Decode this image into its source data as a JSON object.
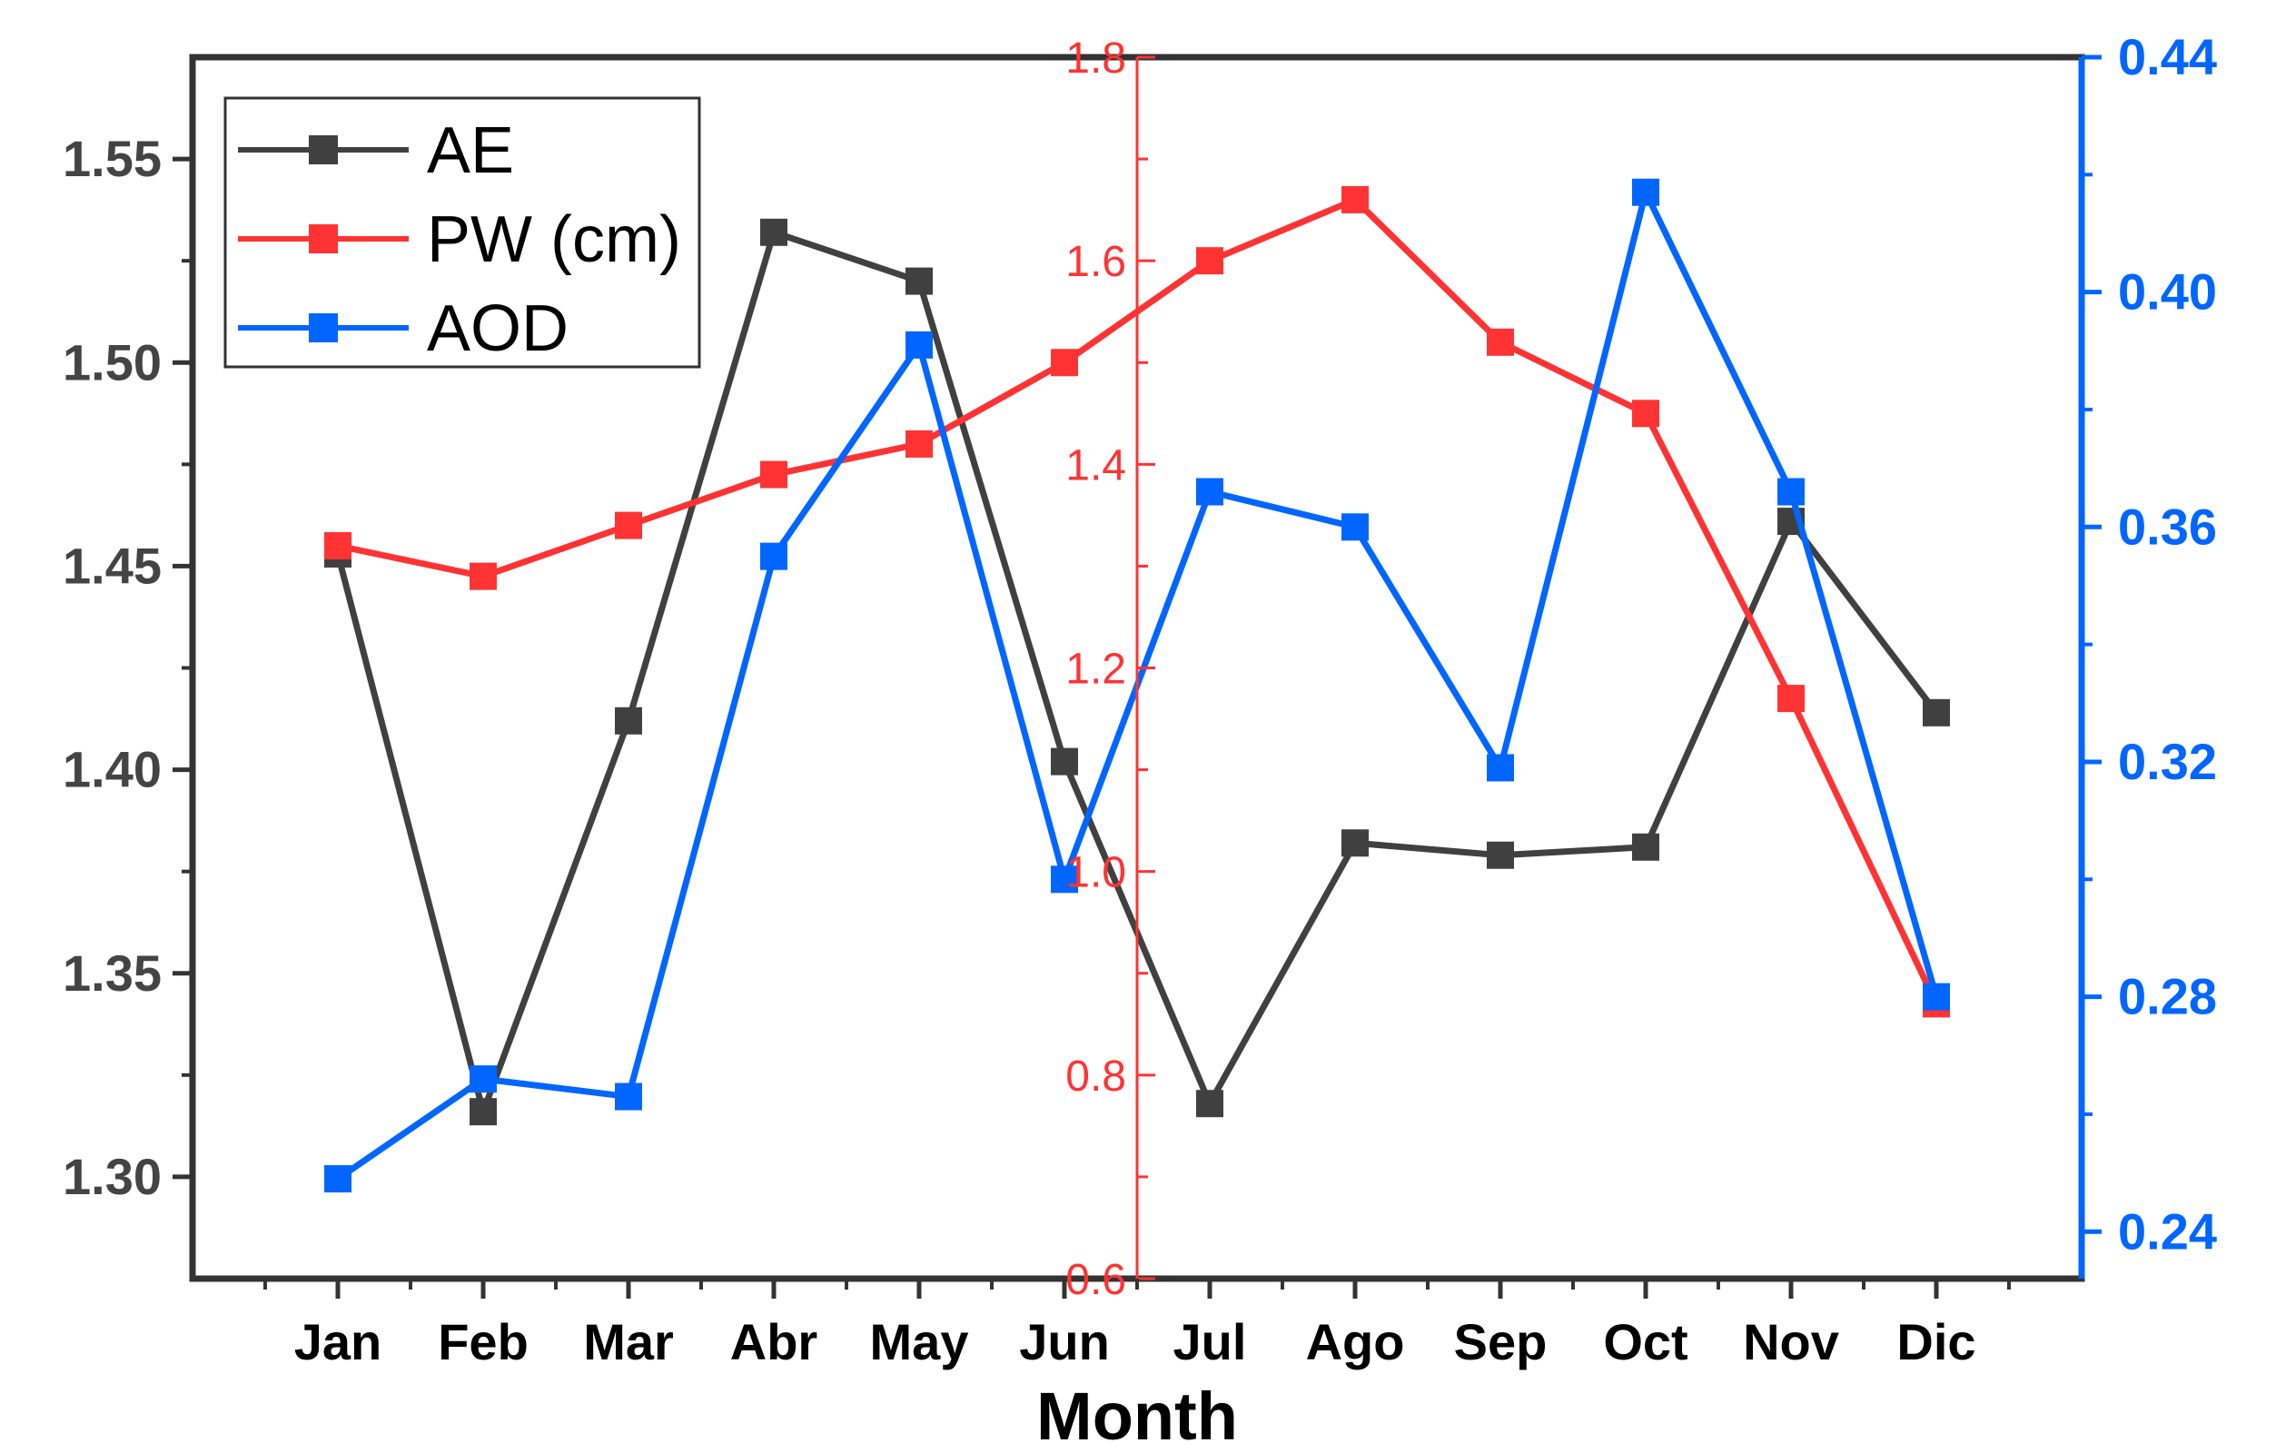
{
  "chart_data": {
    "type": "line",
    "xlabel": "Month",
    "categories": [
      "Jan",
      "Feb",
      "Mar",
      "Abr",
      "May",
      "Jun",
      "Jul",
      "Ago",
      "Sep",
      "Oct",
      "Nov",
      "Dic"
    ],
    "axes": {
      "left": {
        "ylim": [
          1.275,
          1.575
        ],
        "ticks": [
          "1.30",
          "1.35",
          "1.40",
          "1.45",
          "1.50",
          "1.55"
        ],
        "color": "#000000"
      },
      "middle": {
        "ylim": [
          0.6,
          1.8
        ],
        "ticks": [
          "0.6",
          "0.8",
          "1.0",
          "1.2",
          "1.4",
          "1.6",
          "1.8"
        ],
        "color": "#ff3333"
      },
      "right": {
        "ylim": [
          0.232,
          0.44
        ],
        "ticks": [
          "0.24",
          "0.28",
          "0.32",
          "0.36",
          "0.40",
          "0.44"
        ],
        "color": "#0066ff"
      }
    },
    "legend_position": "top-left",
    "grid": false,
    "series": [
      {
        "name": "AE",
        "axis": "left",
        "color": "#404040",
        "values": [
          1.453,
          1.316,
          1.412,
          1.532,
          1.52,
          1.402,
          1.318,
          1.382,
          1.379,
          1.381,
          1.461,
          1.414
        ]
      },
      {
        "name": "PW (cm)",
        "axis": "middle",
        "color": "#ff3333",
        "values": [
          1.32,
          1.29,
          1.34,
          1.39,
          1.42,
          1.5,
          1.6,
          1.66,
          1.52,
          1.45,
          1.17,
          0.87
        ]
      },
      {
        "name": "AOD",
        "axis": "right",
        "color": "#0066ff",
        "values": [
          0.249,
          0.266,
          0.263,
          0.355,
          0.391,
          0.3,
          0.366,
          0.36,
          0.319,
          0.417,
          0.366,
          0.28
        ]
      }
    ]
  }
}
